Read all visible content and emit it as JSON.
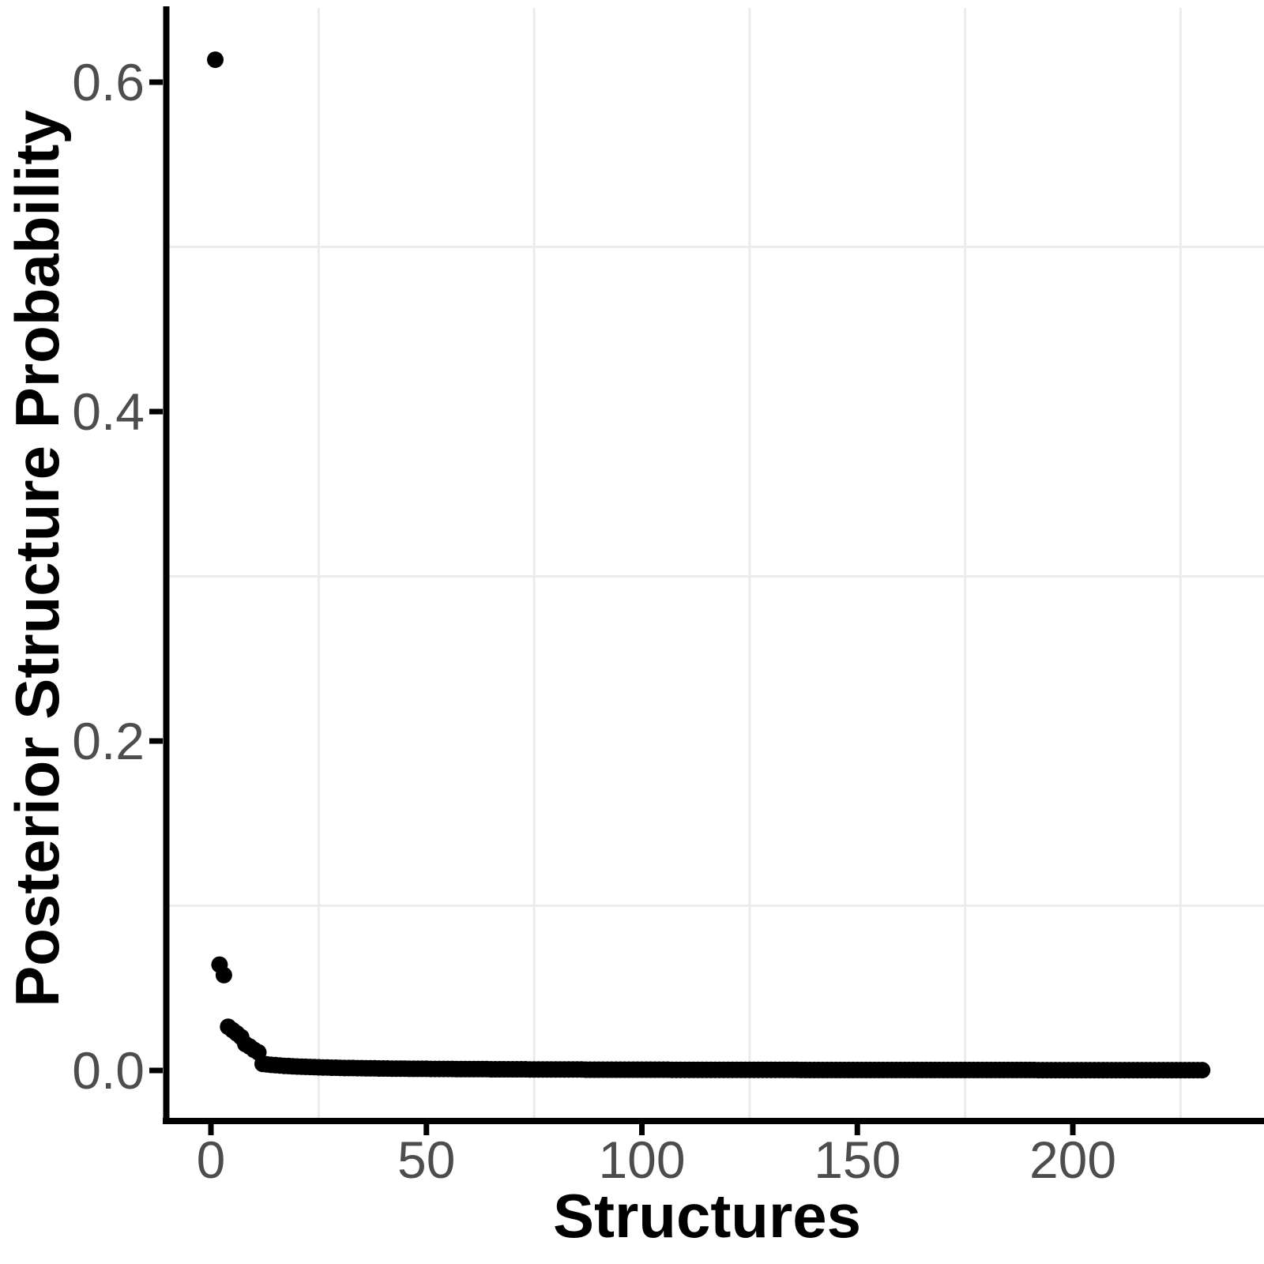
{
  "figure": {
    "background_color": "#ffffff",
    "point_color": "#000000",
    "axis_color": "#000000",
    "tick_color": "#000000",
    "tick_label_color": "#4d4d4d",
    "minor_gridline_color": "#ebebeb",
    "title_color": "#000000"
  },
  "chart_data": {
    "type": "scatter",
    "title": "",
    "xlabel": "Structures",
    "ylabel": "Posterior Structure Probability",
    "legend": "none",
    "grid": "minor-only",
    "x_ticks": [
      0,
      50,
      100,
      150,
      200
    ],
    "x_tick_labels": [
      "0",
      "50",
      "100",
      "150",
      "200"
    ],
    "y_ticks": [
      0.0,
      0.2,
      0.4,
      0.6
    ],
    "y_tick_labels": [
      "0.0",
      "0.2",
      "0.4",
      "0.6"
    ],
    "x_minor_gridlines": [
      25,
      75,
      125,
      175,
      225
    ],
    "y_minor_gridlines": [
      0.1,
      0.3,
      0.5
    ],
    "xlim": [
      -11,
      244
    ],
    "ylim": [
      -0.031,
      0.645
    ],
    "n_points": 230,
    "x_start": 1,
    "x_step": 1,
    "values": [
      0.6136,
      0.0642,
      0.0579,
      0.0265,
      0.0245,
      0.0225,
      0.0203,
      0.016,
      0.0145,
      0.0125,
      0.011,
      0.004,
      0.0037,
      0.0034,
      0.0032,
      0.003,
      0.0028,
      0.0027,
      0.0025,
      0.0024,
      0.0023,
      0.0022,
      0.0021,
      0.002,
      0.0019,
      0.0018,
      0.0018,
      0.0017,
      0.0017,
      0.0016,
      0.0015,
      0.0015,
      0.0015,
      0.0014,
      0.0014,
      0.0013,
      0.0013,
      0.0013,
      0.0012,
      0.0012,
      0.0012,
      0.0011,
      0.0011,
      0.0011,
      0.0011,
      0.001,
      0.001,
      0.001,
      0.001,
      0.001,
      0.0009,
      0.0009,
      0.0009,
      0.0009,
      0.0009,
      0.0009,
      0.0008,
      0.0008,
      0.0008,
      0.0008,
      0.0008,
      0.0008,
      0.0008,
      0.0008,
      0.0007,
      0.0007,
      0.0007,
      0.0007,
      0.0007,
      0.0007,
      0.0007,
      0.0007,
      0.0007,
      0.0006,
      0.0006,
      0.0006,
      0.0006,
      0.0006,
      0.0006,
      0.0006,
      0.0006,
      0.0006,
      0.0006,
      0.0006,
      0.0006,
      0.0006,
      0.0005,
      0.0005,
      0.0005,
      0.0005,
      0.0005,
      0.0005,
      0.0005,
      0.0005,
      0.0005,
      0.0005,
      0.0005,
      0.0005,
      0.0005,
      0.0005,
      0.0005,
      0.0005,
      0.0005,
      0.0005,
      0.0005,
      0.0005,
      0.0004,
      0.0004,
      0.0004,
      0.0004,
      0.0004,
      0.0004,
      0.0004,
      0.0004,
      0.0004,
      0.0004,
      0.0004,
      0.0004,
      0.0004,
      0.0004,
      0.0004,
      0.0004,
      0.0004,
      0.0004,
      0.0004,
      0.0004,
      0.0004,
      0.0004,
      0.0004,
      0.0004,
      0.0004,
      0.0004,
      0.0004,
      0.0004,
      0.0004,
      0.0004,
      0.0003,
      0.0003,
      0.0003,
      0.0003,
      0.0003,
      0.0003,
      0.0003,
      0.0003,
      0.0003,
      0.0003,
      0.0003,
      0.0003,
      0.0003,
      0.0003,
      0.0003,
      0.0003,
      0.0003,
      0.0003,
      0.0003,
      0.0003,
      0.0003,
      0.0003,
      0.0003,
      0.0003,
      0.0003,
      0.0003,
      0.0003,
      0.0003,
      0.0003,
      0.0003,
      0.0003,
      0.0003,
      0.0003,
      0.0003,
      0.0003,
      0.0003,
      0.0003,
      0.0003,
      0.0003,
      0.0003,
      0.0003,
      0.0003,
      0.0003,
      0.0003,
      0.0003,
      0.0003,
      0.0003,
      0.0003,
      0.0003,
      0.0003,
      0.0003,
      0.0003,
      0.0003,
      0.0003,
      0.0003,
      0.0002,
      0.0002,
      0.0002,
      0.0002,
      0.0002,
      0.0002,
      0.0002,
      0.0002,
      0.0002,
      0.0002,
      0.0002,
      0.0002,
      0.0002,
      0.0002,
      0.0002,
      0.0002,
      0.0002,
      0.0002,
      0.0002,
      0.0002,
      0.0002,
      0.0002,
      0.0002,
      0.0002,
      0.0002,
      0.0002,
      0.0002,
      0.0002,
      0.0002,
      0.0002,
      0.0002,
      0.0002,
      0.0002,
      0.0002,
      0.0002,
      0.0002,
      0.0002,
      0.0002,
      0.0002
    ]
  }
}
